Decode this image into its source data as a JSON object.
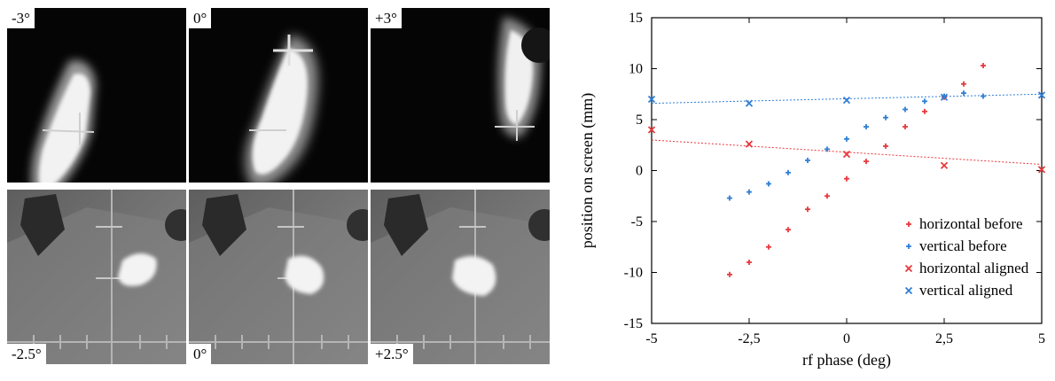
{
  "panels": {
    "top": [
      {
        "label": "-3°"
      },
      {
        "label": "0°"
      },
      {
        "label": "+3°"
      }
    ],
    "bottom": [
      {
        "label": "-2.5°"
      },
      {
        "label": "0°"
      },
      {
        "label": "+2.5°"
      }
    ]
  },
  "chart_data": {
    "type": "scatter",
    "xlabel": "rf phase (deg)",
    "ylabel": "position on screen (mm)",
    "xlim": [
      -5,
      5
    ],
    "ylim": [
      -15,
      15
    ],
    "xticks": [
      -5,
      -2.5,
      0,
      2.5,
      5
    ],
    "xtick_labels": [
      "-5",
      "-2,5",
      "0",
      "2,5",
      "5"
    ],
    "yticks": [
      -15,
      -10,
      -5,
      0,
      5,
      10,
      15
    ],
    "legend_position": "bottom-right",
    "series": [
      {
        "name": "horizontal before",
        "marker": "plus",
        "color": "#e8383d",
        "x": [
          -3,
          -2.5,
          -2,
          -1.5,
          -1,
          -0.5,
          0,
          0.5,
          1,
          1.5,
          2,
          2.5,
          3,
          3.5
        ],
        "y": [
          -10.2,
          -9,
          -7.5,
          -5.8,
          -3.8,
          -2.5,
          -0.8,
          0.9,
          2.4,
          4.3,
          5.8,
          7.2,
          8.5,
          10.3
        ]
      },
      {
        "name": "vertical before",
        "marker": "plus",
        "color": "#2f7fd6",
        "x": [
          -3,
          -2.5,
          -2,
          -1.5,
          -1,
          -0.5,
          0,
          0.5,
          1,
          1.5,
          2,
          2.5,
          3,
          3.5
        ],
        "y": [
          -2.7,
          -2.1,
          -1.3,
          -0.2,
          1.0,
          2.1,
          3.1,
          4.3,
          5.2,
          6.0,
          6.8,
          7.3,
          7.6,
          7.3
        ]
      },
      {
        "name": "horizontal aligned",
        "marker": "cross",
        "color": "#e8383d",
        "x": [
          -5,
          -2.5,
          0,
          2.5,
          5
        ],
        "y": [
          4.0,
          2.6,
          1.6,
          0.5,
          0.1
        ],
        "fit": [
          3.0,
          0.6
        ]
      },
      {
        "name": "vertical aligned",
        "marker": "cross",
        "color": "#2f7fd6",
        "x": [
          -5,
          -2.5,
          0,
          2.5,
          5
        ],
        "y": [
          7.0,
          6.6,
          6.9,
          7.2,
          7.4
        ],
        "fit": [
          6.6,
          7.5
        ]
      }
    ]
  }
}
